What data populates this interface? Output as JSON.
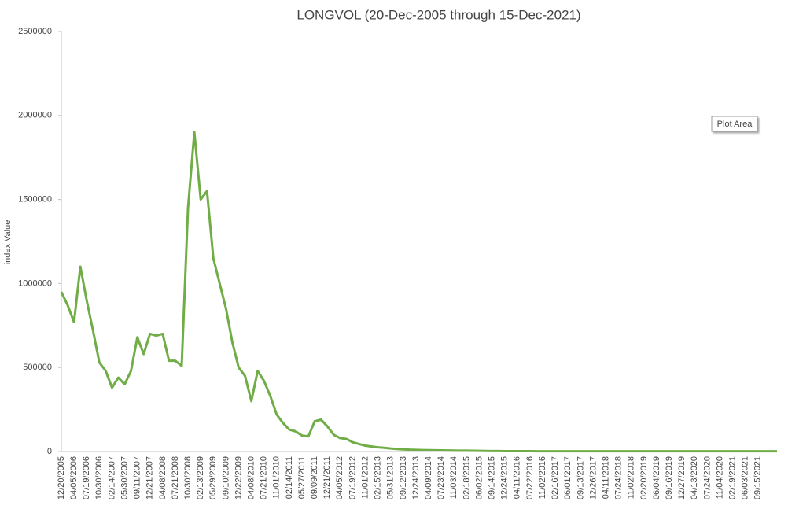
{
  "chart_data": {
    "type": "line",
    "title": "LONGVOL (20-Dec-2005 through 15-Dec-2021)",
    "y_label": "index Value",
    "tooltip": "Plot Area",
    "categories": [
      "12/20/2005",
      null,
      "04/05/2006",
      null,
      "07/19/2006",
      null,
      "10/30/2006",
      null,
      "02/14/2007",
      null,
      "05/30/2007",
      null,
      "09/11/2007",
      null,
      "12/21/2007",
      null,
      "04/08/2008",
      null,
      "07/21/2008",
      null,
      "10/30/2008",
      null,
      "02/13/2009",
      null,
      "05/29/2009",
      null,
      "09/10/2009",
      null,
      "12/22/2009",
      null,
      "04/08/2010",
      null,
      "07/21/2010",
      null,
      "11/01/2010",
      null,
      "02/14/2011",
      null,
      "05/27/2011",
      null,
      "09/09/2011",
      null,
      "12/21/2011",
      null,
      "04/05/2012",
      null,
      "07/19/2012",
      null,
      "11/01/2012",
      null,
      "02/15/2013",
      null,
      "05/31/2013",
      null,
      "09/12/2013",
      null,
      "12/24/2013",
      null,
      "04/09/2014",
      null,
      "07/23/2014",
      null,
      "11/03/2014",
      null,
      "02/18/2015",
      null,
      "06/02/2015",
      null,
      "09/14/2015",
      null,
      "12/24/2015",
      null,
      "04/11/2016",
      null,
      "07/22/2016",
      null,
      "11/02/2016",
      null,
      "02/16/2017",
      null,
      "06/01/2017",
      null,
      "09/13/2017",
      null,
      "12/26/2017",
      null,
      "04/11/2018",
      null,
      "07/24/2018",
      null,
      "11/02/2018",
      null,
      "02/20/2019",
      null,
      "06/04/2019",
      null,
      "09/16/2019",
      null,
      "12/27/2019",
      null,
      "04/13/2020",
      null,
      "07/24/2020",
      null,
      "11/04/2020",
      null,
      "02/19/2021",
      null,
      "06/03/2021",
      null,
      "09/15/2021",
      null,
      null,
      null
    ],
    "values": [
      950000,
      870000,
      770000,
      1100000,
      900000,
      720000,
      530000,
      480000,
      380000,
      440000,
      400000,
      480000,
      680000,
      580000,
      700000,
      690000,
      700000,
      540000,
      540000,
      510000,
      1450000,
      1900000,
      1500000,
      1550000,
      1150000,
      1000000,
      850000,
      650000,
      500000,
      450000,
      300000,
      480000,
      420000,
      330000,
      220000,
      170000,
      130000,
      120000,
      95000,
      90000,
      180000,
      190000,
      150000,
      100000,
      80000,
      75000,
      55000,
      45000,
      35000,
      30000,
      25000,
      22000,
      18000,
      15000,
      13000,
      11000,
      10000,
      9000,
      8000,
      7500,
      7000,
      6500,
      6000,
      5500,
      5000,
      4500,
      4000,
      3500,
      3000,
      2800,
      2500,
      2400,
      2300,
      2200,
      2100,
      2000,
      1900,
      1800,
      1700,
      1600,
      1500,
      1500,
      1500,
      1500,
      1500,
      1500,
      1500,
      1500,
      1500,
      1500,
      1500,
      1500,
      1500,
      1500,
      1500,
      1500,
      1500,
      1500,
      1500,
      1500,
      1500,
      1500,
      1500,
      1500,
      1500,
      1500,
      1500,
      1500,
      1500,
      1500,
      1500,
      1500,
      1500,
      1500
    ],
    "color": "#70ad47",
    "ylim": [
      0,
      2500000
    ],
    "yticks": [
      0,
      500000,
      1000000,
      1500000,
      2000000,
      2500000
    ],
    "grid": false
  }
}
